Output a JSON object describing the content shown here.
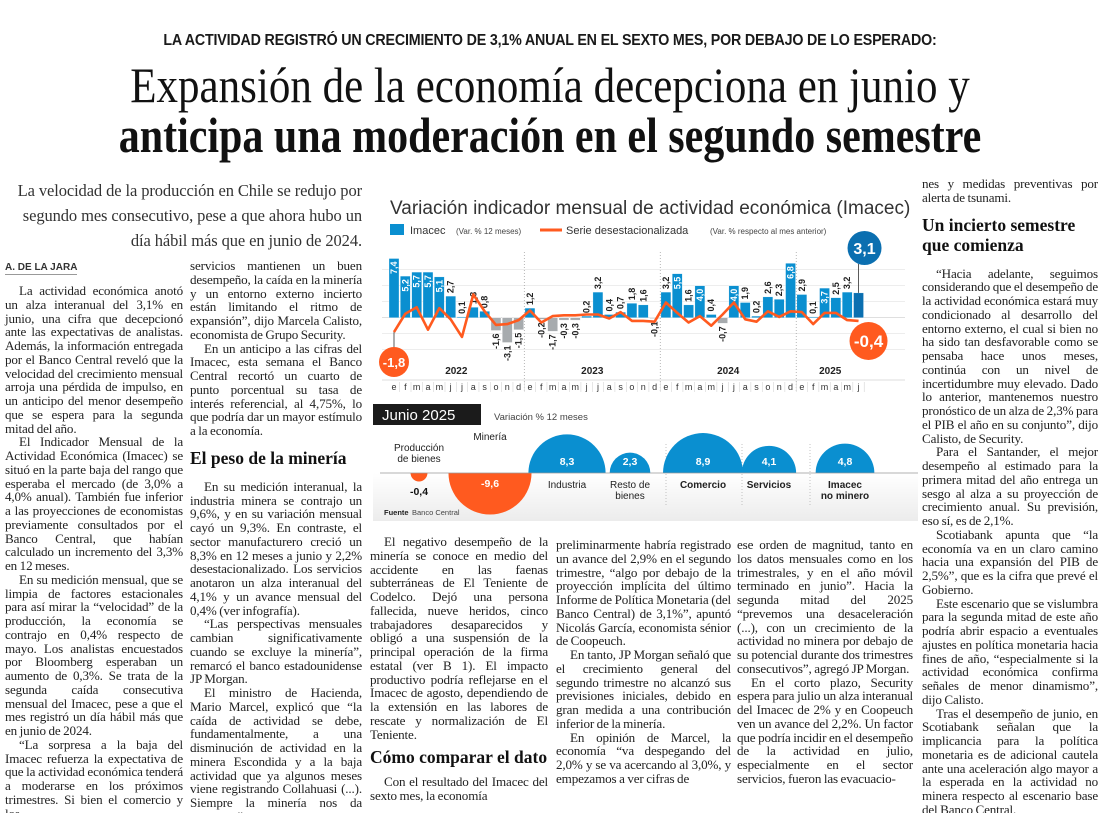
{
  "kicker": "LA ACTIVIDAD REGISTRÓ UN CRECIMIENTO DE 3,1% ANUAL EN EL SEXTO MES, POR DEBAJO DE LO ESPERADO:",
  "headline": {
    "line1": "Expansión de la economía decepciona en junio y",
    "line2": "anticipa una moderación en el segundo semestre"
  },
  "deck": "La velocidad de la producción en Chile se redujo por segundo mes consecutivo, pese a que ahora hubo un día hábil más que en junio de 2024.",
  "byline": "A. DE LA JARA",
  "columns": {
    "c1": [
      "La actividad económica anotó un alza interanual del 3,1% en junio, una cifra que decepcionó ante las expectativas de analistas. Además, la información entregada por el Banco Central reveló que la velocidad del crecimiento mensual arroja una pérdida de impulso, en un anticipo del menor desempeño que se espera para la segunda mitad del año.",
      "El Indicador Mensual de la Actividad Económica (Imacec) se situó en la parte baja del rango que esperaba el mercado (de 3,0% a 4,0% anual). También fue inferior a las proyecciones de economistas previamente consultados por el Banco Central, que habían calculado un incremento del 3,3% en 12 meses.",
      "En su medición mensual, que se limpia de factores estacionales para así mirar la “velocidad” de la producción, la economía se contrajo en 0,4% respecto de mayo. Los analistas encuestados por Bloomberg esperaban un aumento de 0,3%. Se trata de la segunda caída consecutiva mensual del Imacec, pese a que el mes registró un día hábil más que en junio de 2024.",
      "“La sorpresa a la baja del Imacec refuerza la expectativa de que la actividad económica tenderá a moderarse en los próximos trimestres. Si bien el comercio y los"
    ],
    "c2_top": [
      "servicios mantienen un buen desempeño, la caída en la minería y un entorno externo incierto están limitando el ritmo de expansión”, dijo Marcela Calisto, economista de Grupo Security.",
      "En un anticipo a las cifras del Imacec, esta semana el Banco Central recortó un cuarto de punto porcentual su tasa de interés referencial, al 4,75%, lo que podría dar un mayor estímulo a la economía."
    ],
    "c2_heading": "El peso de la minería",
    "c2_bottom": [
      "En su medición interanual, la industria minera se contrajo un 9,6%, y en su variación mensual cayó un 9,3%. En contraste, el sector manufacturero creció un 8,3% en 12 meses a junio y 2,2% desestacionalizado. Los servicios anotaron un alza interanual del 4,1% y un avance mensual del 0,4% (ver infografía).",
      "“Las perspectivas mensuales cambian significativamente cuando se excluye la minería”, remarcó el banco estadounidense JP Morgan.",
      "El ministro de Hacienda, Mario Marcel, explicó que “la caída de actividad se debe, fundamentalmente, a una disminución de actividad en la minera Escondida y a la baja actividad que ya algunos meses viene registrando Collahuasi (...). Siempre la minería nos da sorpresas”."
    ],
    "c3_top": [
      "El negativo desempeño de la minería se conoce en medio del accidente en las faenas subterráneas de El Teniente de Codelco. Dejó una persona fallecida, nueve heridos, cinco trabajadores desaparecidos y obligó a una suspensión de la principal operación de la firma estatal (ver B 1). El impacto productivo podría reflejarse en el Imacec de agosto, dependiendo de la extensión en las labores de rescate y normalización de El Teniente."
    ],
    "c3_heading": "Cómo comparar el dato",
    "c3_bottom": [
      "Con el resultado del Imacec del sexto mes, la economía"
    ],
    "c4": [
      "preliminarmente habría registrado un avance del 2,9% en el segundo trimestre, “algo por debajo de la proyección implícita del último Informe de Política Monetaria (del Banco Central) de 3,1%”, apuntó Nicolás García, economista sénior de Coopeuch.",
      "En tanto, JP Morgan señaló que el crecimiento general del segundo trimestre no alcanzó sus previsiones iniciales, debido en gran medida a una contribución inferior de la minería.",
      "En opinión de Marcel, la economía “va despegando del 2,0% y se va acercando al 3,0%, y empezamos a ver cifras de"
    ],
    "c5": [
      "ese orden de magnitud, tanto en los datos mensuales como en los trimestrales, y en el año móvil terminado en junio”. Hacia la segunda mitad del 2025 “prevemos una desaceleración (...), con un crecimiento de la actividad no minera por debajo de su potencial durante dos trimestres consecutivos”, agregó JP Morgan.",
      "En el corto plazo, Security espera para julio un alza interanual del Imacec de 2% y en Coopeuch ven un avance del 2,2%. Un factor que podría incidir en el desempeño de la actividad en julio, especialmente en el sector servicios, fueron las evacuacio-"
    ],
    "c6_top": [
      "nes y medidas preventivas por alerta de tsunami."
    ],
    "c6_heading": "Un incierto semestre que comienza",
    "c6_bottom": [
      "“Hacia adelante, seguimos considerando que el desempeño de la actividad económica estará muy condicionado al desarrollo del entorno externo, el cual si bien no ha sido tan desfavorable como se pensaba hace unos meses, continúa con un nivel de incertidumbre muy elevado. Dado lo anterior, mantenemos nuestro pronóstico de un alza de 2,3% para el PIB el año en su conjunto”, dijo Calisto, de Security.",
      "Para el Santander, el mejor desempeño al estimado para la primera mitad del año entrega un sesgo al alza a su proyección de crecimiento anual. Su previsión, eso sí, es de 2,1%.",
      "Scotiabank apunta que “la economía va en un claro camino hacia una expansión del PIB de 2,5%”, que es la cifra que prevé el Gobierno.",
      "Este escenario que se vislumbra para la segunda mitad de este año podría abrir espacio a eventuales ajustes en política monetaria hacia fines de año, “especialmente si la actividad económica confirma señales de menor dinamismo”, dijo Calisto.",
      "Tras el desempeño de junio, en Scotiabank señalan que la implicancia para la política monetaria es de adicional cautela ante una aceleración algo mayor a la esperada en la actividad no minera respecto al escenario base del Banco Central."
    ]
  },
  "colors": {
    "blue": "#0a8fd0",
    "dark_blue": "#0b6fb0",
    "gray_bar": "#a7abae",
    "orange": "#ff5a1f",
    "black": "#1a1a1a"
  },
  "chart_data": [
    {
      "type": "bar",
      "title": "Variación indicador mensual de actividad económica (Imacec)",
      "years": [
        "2022",
        "2023",
        "2024",
        "2025"
      ],
      "months": [
        "e",
        "f",
        "m",
        "a",
        "m",
        "j",
        "j",
        "a",
        "s",
        "o",
        "n",
        "d",
        "e",
        "f",
        "m",
        "a",
        "m",
        "j",
        "j",
        "a",
        "s",
        "o",
        "n",
        "d",
        "e",
        "f",
        "m",
        "a",
        "m",
        "j",
        "j",
        "a",
        "s",
        "o",
        "n",
        "d",
        "e",
        "f",
        "m",
        "a",
        "m",
        "j"
      ],
      "series": [
        {
          "name": "Imacec",
          "unit": "(Var. % 12 meses)",
          "type": "bar",
          "values": [
            7.4,
            5.2,
            5.7,
            5.7,
            5.1,
            2.7,
            0.1,
            1.3,
            0.8,
            -1.6,
            -3.1,
            -1.5,
            1.2,
            -0.2,
            -1.7,
            -0.3,
            -0.3,
            0.2,
            3.2,
            0.4,
            0.7,
            1.8,
            1.6,
            -0.1,
            3.2,
            5.5,
            1.6,
            4.0,
            0.4,
            -0.7,
            4.0,
            1.9,
            0.2,
            2.6,
            2.3,
            6.8,
            2.9,
            0.1,
            3.7,
            2.5,
            3.2,
            3.1
          ],
          "labels": [
            "7,4",
            "5,2",
            "5,7",
            "5,7",
            "5,1",
            "2,7",
            "0,1",
            "1,3",
            "0,8",
            "-1,6",
            "-3,1",
            "-1,5",
            "1,2",
            "-0,2",
            "-1,7",
            "-0,3",
            "-0,3",
            "0,2",
            "3,2",
            "0,4",
            "0,7",
            "1,8",
            "1,6",
            "-0,1",
            "3,2",
            "5,5",
            "1,6",
            "4,0",
            "0,4",
            "-0,7",
            "4,0",
            "1,9",
            "0,2",
            "2,6",
            "2,3",
            "6,8",
            "2,9",
            "0,1",
            "3,7",
            "2,5",
            "3,2",
            ""
          ]
        },
        {
          "name": "Serie desestacionalizada",
          "unit": "(Var. % respecto al mes anterior)",
          "type": "line",
          "values": [
            -1.8,
            0.5,
            1.3,
            -1.5,
            1.2,
            -0.2,
            -2.4,
            2.9,
            0.8,
            -0.9,
            -0.8,
            -0.3,
            0.9,
            -0.6,
            0.2,
            0.3,
            0.3,
            0.4,
            0.4,
            -0.1,
            0.7,
            -0.4,
            -0.4,
            -0.5,
            1.9,
            0.6,
            -0.6,
            0.2,
            -1.0,
            0.4,
            1.9,
            -0.2,
            -0.5,
            0.8,
            0.1,
            0.8,
            0.7,
            -0.8,
            0.6,
            0.6,
            -0.3,
            -0.4
          ]
        }
      ],
      "callouts": {
        "first_line": "-1,8",
        "last_bar": "3,1",
        "last_line": "-0,4"
      }
    },
    {
      "type": "bubble",
      "title": "Junio 2025",
      "subtitle": "Variación % 12 meses",
      "categories": [
        "Producción de bienes",
        "Minería",
        "Industria",
        "Resto de bienes",
        "Comercio",
        "Servicios",
        "Imacec no minero"
      ],
      "values": [
        -0.4,
        -9.6,
        8.3,
        2.3,
        8.9,
        4.1,
        4.8
      ],
      "labels": [
        "-0,4",
        "-9,6",
        "8,3",
        "2,3",
        "8,9",
        "4,1",
        "4,8"
      ],
      "source_label": "Fuente",
      "source": "Banco Central"
    }
  ]
}
